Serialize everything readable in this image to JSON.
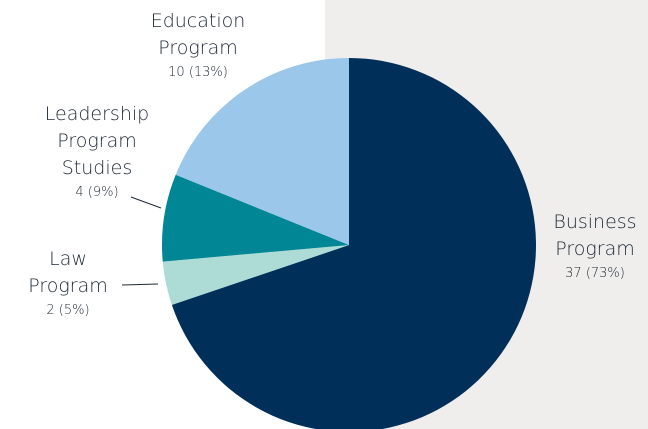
{
  "chart_data": {
    "type": "pie",
    "slices": [
      {
        "label_lines": [
          "Business",
          "Program"
        ],
        "value_label": "37 (73%)",
        "value": 37,
        "percent": 73,
        "color": "#00305a"
      },
      {
        "label_lines": [
          "Law",
          "Program"
        ],
        "value_label": "2 (5%)",
        "value": 2,
        "percent": 5,
        "color": "#acdcd5"
      },
      {
        "label_lines": [
          "Leadership",
          "Program",
          "Studies"
        ],
        "value_label": "4 (9%)",
        "value": 4,
        "percent": 9,
        "color": "#008694"
      },
      {
        "label_lines": [
          "Education",
          "Program"
        ],
        "value_label": "10 (13%)",
        "value": 10,
        "percent": 13,
        "color": "#9bc7ea"
      }
    ]
  }
}
